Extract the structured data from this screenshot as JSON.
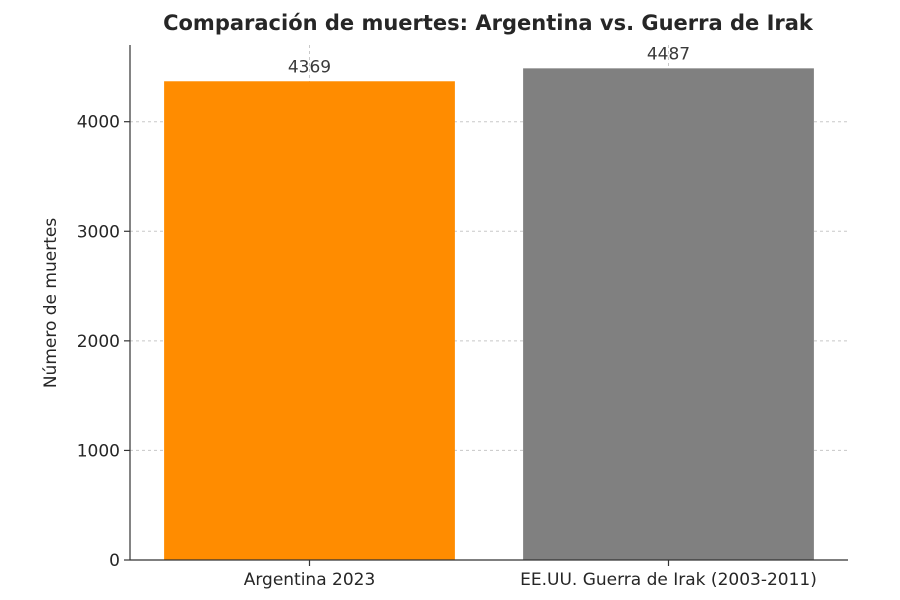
{
  "chart_data": {
    "type": "bar",
    "title": "Comparación de muertes: Argentina vs. Guerra de Irak",
    "xlabel": "",
    "ylabel": "Número de muertes",
    "categories": [
      "Argentina 2023",
      "EE.UU. Guerra de Irak (2003-2011)"
    ],
    "values": [
      4369,
      4487
    ],
    "data_labels": [
      "4369",
      "4487"
    ],
    "colors": [
      "#ff8c00",
      "#808080"
    ],
    "ylim": [
      0,
      4700
    ],
    "yticks": [
      0,
      1000,
      2000,
      3000,
      4000
    ],
    "ytick_labels": [
      "0",
      "1000",
      "2000",
      "3000",
      "4000"
    ],
    "grid": true,
    "legend": "none"
  }
}
